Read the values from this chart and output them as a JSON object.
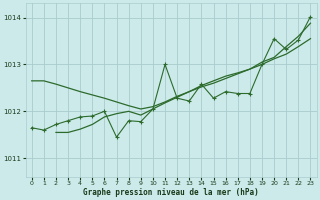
{
  "background_color": "#cceaea",
  "grid_color": "#aacccc",
  "line_color": "#2d6b2d",
  "text_color": "#1a3a1a",
  "xlabel": "Graphe pression niveau de la mer (hPa)",
  "xlim": [
    -0.5,
    23.5
  ],
  "ylim": [
    1010.6,
    1014.3
  ],
  "yticks": [
    1011,
    1012,
    1013,
    1014
  ],
  "xticks": [
    0,
    1,
    2,
    3,
    4,
    5,
    6,
    7,
    8,
    9,
    10,
    11,
    12,
    13,
    14,
    15,
    16,
    17,
    18,
    19,
    20,
    21,
    22,
    23
  ],
  "series": {
    "line1_x": [
      0,
      1,
      2,
      3,
      4,
      5,
      6,
      7,
      8,
      9,
      10,
      11,
      12,
      13,
      14,
      15,
      16,
      17,
      18,
      19,
      20,
      21,
      22,
      23
    ],
    "line1_y": [
      1012.65,
      1012.65,
      1012.58,
      1012.5,
      1012.42,
      1012.35,
      1012.28,
      1012.2,
      1012.12,
      1012.05,
      1012.1,
      1012.2,
      1012.32,
      1012.42,
      1012.52,
      1012.6,
      1012.7,
      1012.8,
      1012.9,
      1013.0,
      1013.12,
      1013.22,
      1013.38,
      1013.55
    ],
    "line2_x": [
      2,
      3,
      4,
      5,
      6,
      7,
      8,
      9,
      10,
      11,
      12,
      13,
      14,
      15,
      16,
      17,
      18,
      19,
      20,
      21,
      22,
      23
    ],
    "line2_y": [
      1011.55,
      1011.55,
      1011.62,
      1011.72,
      1011.88,
      1011.95,
      1012.0,
      1011.92,
      1012.05,
      1012.18,
      1012.3,
      1012.42,
      1012.55,
      1012.65,
      1012.75,
      1012.82,
      1012.9,
      1013.05,
      1013.15,
      1013.38,
      1013.6,
      1013.88
    ],
    "line3_x": [
      0,
      1,
      2,
      3,
      4,
      5,
      6,
      7,
      8,
      9,
      10,
      11,
      12,
      13,
      14,
      15,
      16,
      17,
      18,
      19,
      20,
      21,
      22,
      23
    ],
    "line3_y": [
      1011.65,
      1011.6,
      1011.72,
      1011.8,
      1011.88,
      1011.9,
      1012.0,
      1011.45,
      1011.8,
      1011.78,
      1012.05,
      1013.0,
      1012.28,
      1012.22,
      1012.58,
      1012.28,
      1012.42,
      1012.38,
      1012.38,
      1013.0,
      1013.55,
      1013.32,
      1013.52,
      1014.02
    ]
  }
}
